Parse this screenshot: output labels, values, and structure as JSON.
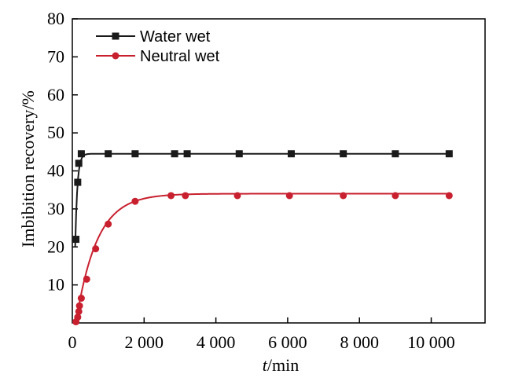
{
  "chart_data": {
    "type": "line",
    "xlabel_italic": "t",
    "xlabel_rest": "/min",
    "ylabel": "Imbibition recovery/%",
    "xlim": [
      0,
      11500
    ],
    "ylim": [
      0,
      80
    ],
    "x_ticks": [
      0,
      2000,
      4000,
      6000,
      8000,
      10000
    ],
    "x_tick_labels": [
      "0",
      "2 000",
      "4 000",
      "6 000",
      "8 000",
      "10 000"
    ],
    "y_ticks": [
      10,
      20,
      30,
      40,
      50,
      60,
      70,
      80
    ],
    "y_tick_labels": [
      "10",
      "20",
      "30",
      "40",
      "50",
      "60",
      "70",
      "80"
    ],
    "grid": false,
    "legend_position": "top-left",
    "series": [
      {
        "name": "Water wet",
        "color": "#1a1a1a",
        "marker": "square",
        "x": [
          100,
          150,
          180,
          250,
          1000,
          1750,
          2850,
          3200,
          4650,
          6100,
          7550,
          9000,
          10500
        ],
        "y": [
          22,
          37,
          42,
          44.5,
          44.5,
          44.5,
          44.5,
          44.5,
          44.5,
          44.5,
          44.5,
          44.5,
          44.5
        ],
        "fit": {
          "plateau": 44.5,
          "t0": 80,
          "tau": 60,
          "start": 20
        }
      },
      {
        "name": "Neutral wet",
        "color": "#c8202e",
        "marker": "circle",
        "x": [
          100,
          150,
          180,
          200,
          250,
          400,
          650,
          1000,
          1750,
          2750,
          3150,
          4600,
          6050,
          7550,
          9000,
          10500
        ],
        "y": [
          0.3,
          1.5,
          3,
          4.5,
          6.5,
          11.5,
          19.5,
          26,
          32,
          33.5,
          33.5,
          33.5,
          33.5,
          33.5,
          33.5,
          33.5
        ],
        "fit": {
          "plateau": 34,
          "t0": 100,
          "tau": 580,
          "start": 0
        }
      }
    ]
  }
}
